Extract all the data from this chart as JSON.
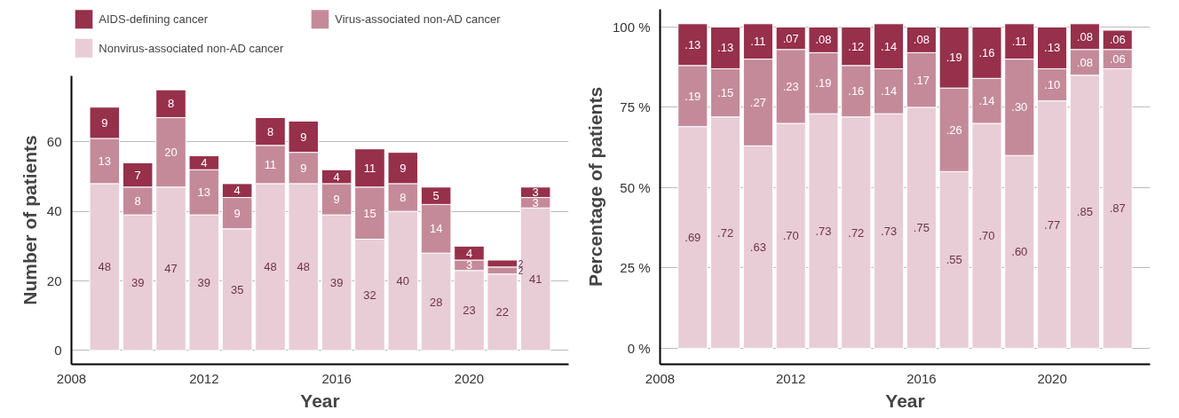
{
  "chart_data": [
    {
      "type": "bar",
      "stacked": true,
      "xlabel": "Year",
      "ylabel": "Number of patients",
      "x": [
        2009,
        2010,
        2011,
        2012,
        2013,
        2014,
        2015,
        2016,
        2017,
        2018,
        2019,
        2020,
        2021,
        2022
      ],
      "series": [
        {
          "name": "Nonvirus-associated non-AD cancer",
          "color": "#e8cdd6",
          "values": [
            48,
            39,
            47,
            39,
            35,
            48,
            48,
            39,
            32,
            40,
            28,
            23,
            22,
            41
          ]
        },
        {
          "name": "Virus-associated non-AD cancer",
          "color": "#c48a9a",
          "values": [
            13,
            8,
            20,
            13,
            9,
            11,
            9,
            9,
            15,
            8,
            14,
            3,
            2,
            3
          ]
        },
        {
          "name": "AIDS-defining cancer",
          "color": "#96304b",
          "values": [
            9,
            7,
            8,
            4,
            4,
            8,
            9,
            4,
            11,
            9,
            5,
            4,
            2,
            3
          ]
        }
      ],
      "data_labels": true,
      "xlim": [
        2008,
        2023
      ],
      "xticks": [
        2008,
        2012,
        2016,
        2020
      ],
      "ylim": [
        -4,
        79
      ],
      "yticks": [
        0,
        20,
        40,
        60
      ],
      "grid": "y",
      "legend": "top"
    },
    {
      "type": "bar",
      "stacked": true,
      "xlabel": "Year",
      "ylabel": "Percentage of patients",
      "x": [
        2009,
        2010,
        2011,
        2012,
        2013,
        2014,
        2015,
        2016,
        2017,
        2018,
        2019,
        2020,
        2021,
        2022
      ],
      "series": [
        {
          "color": "#e8cdd6",
          "values": [
            0.69,
            0.72,
            0.63,
            0.7,
            0.73,
            0.72,
            0.73,
            0.75,
            0.55,
            0.7,
            0.6,
            0.77,
            0.85,
            0.87
          ],
          "value_labels": [
            ".69",
            ".72",
            ".63",
            ".70",
            ".73",
            ".72",
            ".73",
            ".75",
            ".55",
            ".70",
            ".60",
            ".77",
            ".85",
            ".87"
          ]
        },
        {
          "color": "#c48a9a",
          "values": [
            0.19,
            0.15,
            0.27,
            0.23,
            0.19,
            0.16,
            0.14,
            0.17,
            0.26,
            0.14,
            0.3,
            0.1,
            0.08,
            0.06
          ],
          "value_labels": [
            ".19",
            ".15",
            ".27",
            ".23",
            ".19",
            ".16",
            ".14",
            ".17",
            ".26",
            ".14",
            ".30",
            ".10",
            ".08",
            ".06"
          ]
        },
        {
          "color": "#96304b",
          "values": [
            0.13,
            0.13,
            0.11,
            0.07,
            0.08,
            0.12,
            0.14,
            0.08,
            0.19,
            0.16,
            0.11,
            0.13,
            0.08,
            0.06
          ],
          "value_labels": [
            ".13",
            ".13",
            ".11",
            ".07",
            ".08",
            ".12",
            ".14",
            ".08",
            ".19",
            ".16",
            ".11",
            ".13",
            ".08",
            ".06"
          ]
        }
      ],
      "xlim": [
        2008,
        2023
      ],
      "xticks": [
        2008,
        2012,
        2016,
        2020
      ],
      "ylim": [
        -0.05,
        1.055
      ],
      "yticks": [
        {
          "value": 0,
          "label": "0 %"
        },
        {
          "value": 0.25,
          "label": "25 %"
        },
        {
          "value": 0.5,
          "label": "50 %"
        },
        {
          "value": 0.75,
          "label": "75 %"
        },
        {
          "value": 1,
          "label": "100 %"
        }
      ],
      "grid": "y"
    }
  ]
}
